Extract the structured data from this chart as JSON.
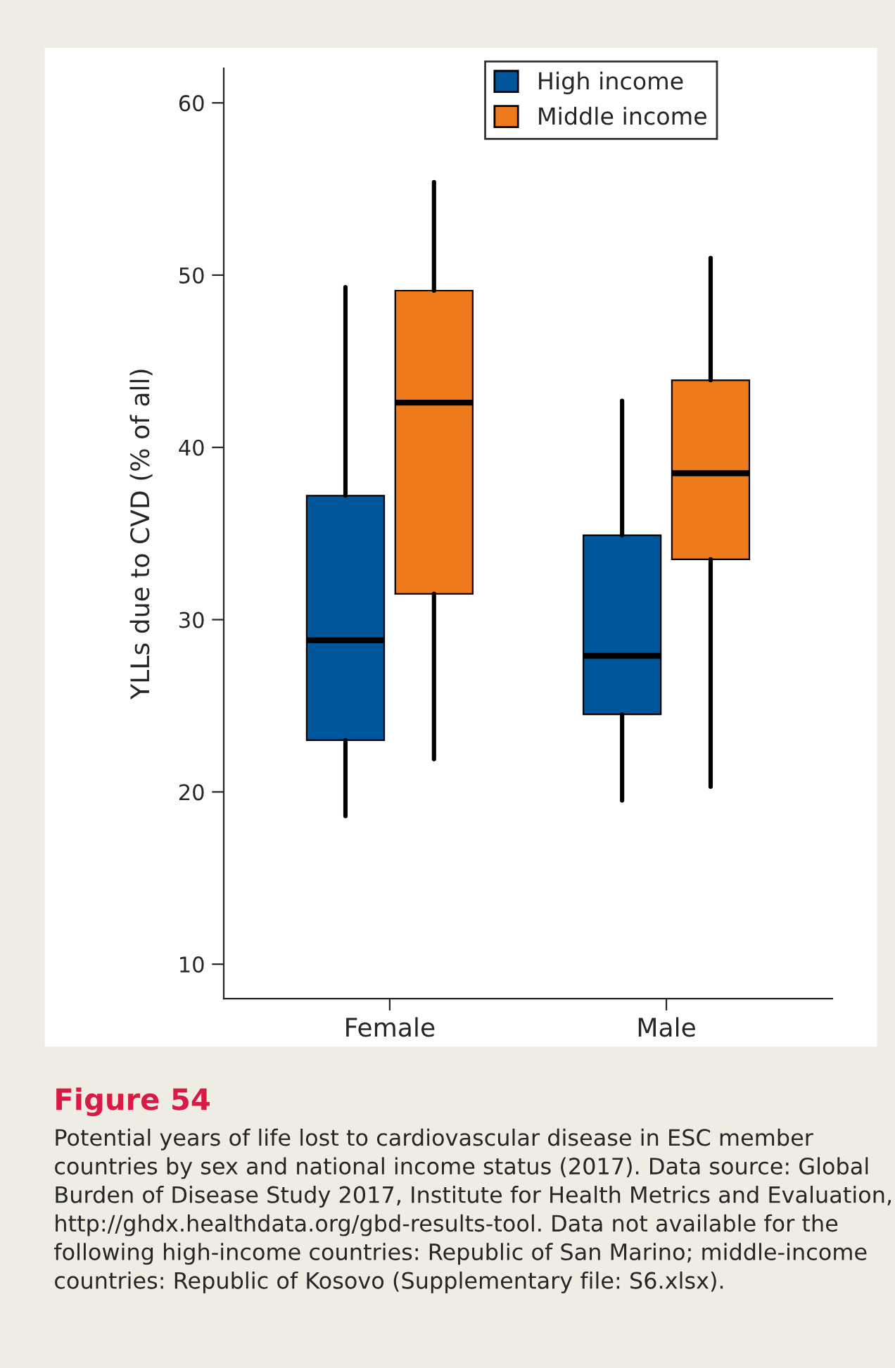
{
  "chart_data": {
    "type": "box",
    "title": "Figure 54",
    "ylabel": "YLLs due to CVD (% of all)",
    "categories": [
      "Female",
      "Male"
    ],
    "series": [
      {
        "name": "High income",
        "color": "#00569b",
        "boxes": [
          {
            "low": 18.6,
            "q1": 23.0,
            "median": 28.8,
            "q3": 37.2,
            "high": 49.3
          },
          {
            "low": 19.5,
            "q1": 24.5,
            "median": 27.9,
            "q3": 34.9,
            "high": 42.7
          }
        ]
      },
      {
        "name": "Middle income",
        "color": "#ee7a1c",
        "boxes": [
          {
            "low": 21.9,
            "q1": 31.5,
            "median": 42.6,
            "q3": 49.1,
            "high": 55.4
          },
          {
            "low": 20.3,
            "q1": 33.5,
            "median": 38.5,
            "q3": 43.9,
            "high": 51.0
          }
        ]
      }
    ],
    "ylim": [
      8,
      62
    ],
    "yticks": [
      10,
      20,
      30,
      40,
      50,
      60
    ],
    "grid": false,
    "legend": "top",
    "annotations": [
      "Potential years of life lost to cardiovascular disease in ESC member countries by sex and national income status (2017). Data source: Global Burden of Disease Study 2017, Institute for Health Metrics and Evaluation, http://ghdx.healthdata.org/gbd-results-tool. Data not available for the following high-income countries: Republic of San Marino; middle-income countries: Republic of Kosovo (Supplementary file: S6.xlsx)."
    ]
  }
}
